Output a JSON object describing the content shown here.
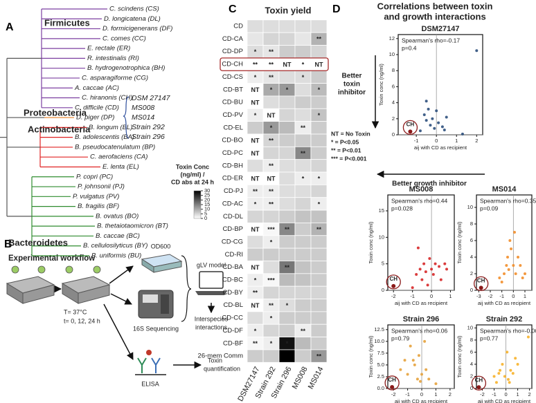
{
  "panel_a": {
    "letter": "A",
    "groups": [
      {
        "name": "Firmicutes",
        "color": "#7b3fa0",
        "species": [
          {
            "label": "C. scindens (CS)",
            "color": "#8e44ad"
          },
          {
            "label": "D. longicatena (DL)",
            "color": "#8b5a2b"
          },
          {
            "label": "D. formicigenerans (DF)",
            "color": "#d4a03a"
          },
          {
            "label": "C. comes (CC)",
            "color": "#9a9a9a"
          },
          {
            "label": "E. rectale (ER)",
            "color": "#b05fc9"
          },
          {
            "label": "R. intestinalis (RI)",
            "color": "#2c3e90"
          },
          {
            "label": "B. hydrogenotrophica (BH)",
            "color": "#5b2c6f"
          },
          {
            "label": "C. asparagiforme (CG)",
            "color": "#9b3fc0"
          },
          {
            "label": "A. caccae (AC)",
            "color": "#8878c3"
          },
          {
            "label": "C. hiranonis (CH)",
            "color": "#a0409a"
          },
          {
            "label": "C. difficile (CD)",
            "color": "#2b4c9b"
          }
        ]
      },
      {
        "name": "Proteobacteria",
        "color": "#e67e22",
        "species": [
          {
            "label": "D. piger (DP)",
            "color": "#e67e22"
          }
        ]
      },
      {
        "name": "Actinobacteria",
        "color": "#e02020",
        "species": [
          {
            "label": "B. longum (BL)",
            "color": "#c0392b"
          },
          {
            "label": "B. adolescentis (BA)",
            "color": "#c2185b"
          },
          {
            "label": "B. pseudocatenulatum (BP)",
            "color": "#e07ab0"
          },
          {
            "label": "C. aerofaciens (CA)",
            "color": "#f08a8a"
          },
          {
            "label": "E. lenta (EL)",
            "color": "#e8c13a"
          }
        ]
      },
      {
        "name": "Bacteroidetes",
        "color": "#2e8b2e",
        "species": [
          {
            "label": "P. copri (PC)",
            "color": "#8bc34a"
          },
          {
            "label": "P. johnsonii (PJ)",
            "color": "#1e6b1e"
          },
          {
            "label": "P. vulgatus (PV)",
            "color": "#2f8f6f"
          },
          {
            "label": "B. fragilis (BF)",
            "color": "#9acd32"
          },
          {
            "label": "B. ovatus (BO)",
            "color": "#556b2f"
          },
          {
            "label": "B. thetaiotaomicron (BT)",
            "color": "#2e6b2e"
          },
          {
            "label": "B. caccae (BC)",
            "color": "#3cb371"
          },
          {
            "label": "B. cellulosilyticus (BY)",
            "color": "#6b8e23"
          },
          {
            "label": "B. uniformis (BU)",
            "color": "#0b6e6e"
          }
        ]
      }
    ],
    "strains": [
      {
        "label": "DSM 27147",
        "color": "#2b4c9b"
      },
      {
        "label": "MS008",
        "color": "#5dade2"
      },
      {
        "label": "MS014",
        "color": "#2b4c9b"
      },
      {
        "label": "Strain 292",
        "color": "#3b7dd8"
      },
      {
        "label": "Strain 296",
        "color": "#85c1e9"
      }
    ]
  },
  "panel_b": {
    "letter": "B",
    "title": "Experimental workflow",
    "conditions": [
      "T= 37°C",
      "t= 0, 12, 24 h"
    ],
    "od": "OD600",
    "seq": "16S Sequencing",
    "elisa": "ELISA",
    "model": "gLV model",
    "interactions": [
      "Interspecies",
      "interactions"
    ],
    "quant": [
      "Toxin",
      "quantification"
    ]
  },
  "panel_c": {
    "letter": "C",
    "title": "Toxin yield",
    "rows": [
      "CD",
      "CD-CA",
      "CD-DP",
      "CD-CH",
      "CD-CS",
      "CD-BT",
      "CD-BU",
      "CD-PV",
      "CD-EL",
      "CD-BO",
      "CD-PC",
      "CD-BH",
      "CD-ER",
      "CD-PJ",
      "CD-AC",
      "CD-DL",
      "CD-BP",
      "CD-CG",
      "CD-RI",
      "CD-BA",
      "CD-BC",
      "CD-BY",
      "CD-BL",
      "CD-CC",
      "CD-DF",
      "CD-BF",
      "26-mem Comm"
    ],
    "columns": [
      "DSM27147",
      "Strain 292",
      "Strain 296",
      "MS008",
      "MS014"
    ],
    "values": [
      [
        4,
        4,
        4,
        4,
        4
      ],
      [
        3,
        5,
        5,
        3,
        9
      ],
      [
        4,
        3,
        6,
        6,
        5
      ],
      [
        0,
        0,
        0,
        0,
        0
      ],
      [
        2,
        3,
        4,
        4,
        6
      ],
      [
        0,
        10,
        12,
        4,
        8
      ],
      [
        0,
        4,
        5,
        6,
        6
      ],
      [
        2,
        0,
        5,
        4,
        7
      ],
      [
        6,
        12,
        8,
        2,
        6
      ],
      [
        0,
        5,
        6,
        6,
        6
      ],
      [
        0,
        5,
        5,
        14,
        6
      ],
      [
        4,
        2,
        4,
        4,
        5
      ],
      [
        0,
        0,
        4,
        2,
        2
      ],
      [
        2,
        2,
        4,
        4,
        5
      ],
      [
        2,
        2,
        4,
        5,
        2
      ],
      [
        5,
        5,
        6,
        7,
        7
      ],
      [
        0,
        1,
        14,
        6,
        9
      ],
      [
        4,
        2,
        6,
        6,
        6
      ],
      [
        6,
        6,
        6,
        6,
        6
      ],
      [
        0,
        4,
        16,
        7,
        6
      ],
      [
        2,
        1,
        8,
        7,
        6
      ],
      [
        2,
        5,
        5,
        5,
        5
      ],
      [
        0,
        2,
        4,
        6,
        6
      ],
      [
        4,
        2,
        6,
        6,
        6
      ],
      [
        2,
        5,
        6,
        2,
        6
      ],
      [
        1,
        2,
        28,
        8,
        6
      ],
      [
        6,
        6,
        30,
        6,
        12
      ]
    ],
    "labels": [
      [
        null,
        null,
        null,
        null,
        null
      ],
      [
        null,
        null,
        null,
        null,
        "**"
      ],
      [
        "*",
        "**",
        null,
        null,
        null
      ],
      [
        "**",
        "**",
        "NT",
        "*",
        "NT"
      ],
      [
        "*",
        "**",
        null,
        "*",
        null
      ],
      [
        "NT",
        "*",
        "*",
        null,
        "*"
      ],
      [
        "NT",
        null,
        null,
        null,
        null
      ],
      [
        "*",
        "NT",
        null,
        null,
        "*"
      ],
      [
        null,
        "*",
        null,
        "**",
        null
      ],
      [
        "NT",
        "**",
        null,
        null,
        null
      ],
      [
        "NT",
        null,
        null,
        "**",
        null
      ],
      [
        null,
        "**",
        null,
        null,
        null
      ],
      [
        "NT",
        "NT",
        null,
        "*",
        "*"
      ],
      [
        "**",
        "**",
        null,
        null,
        null
      ],
      [
        "*",
        "**",
        null,
        null,
        "*"
      ],
      [
        null,
        null,
        null,
        null,
        null
      ],
      [
        "NT",
        "***",
        "**",
        null,
        "**"
      ],
      [
        null,
        "*",
        null,
        null,
        null
      ],
      [
        null,
        null,
        null,
        null,
        null
      ],
      [
        "NT",
        null,
        "**",
        null,
        null
      ],
      [
        "*",
        "***",
        null,
        null,
        null
      ],
      [
        "**",
        null,
        null,
        null,
        null
      ],
      [
        "NT",
        "**",
        "*",
        null,
        null
      ],
      [
        null,
        "*",
        null,
        null,
        null
      ],
      [
        "*",
        null,
        null,
        "**",
        null
      ],
      [
        "**",
        "*",
        "*",
        null,
        null
      ],
      [
        null,
        null,
        null,
        null,
        "**"
      ]
    ],
    "colorbar": {
      "title": [
        "Toxin Conc",
        "(ng/ml) /",
        "CD abs at 24 h"
      ],
      "lim": [
        0,
        30
      ],
      "ticks": [
        0,
        5,
        10,
        15,
        20,
        25,
        30
      ]
    }
  },
  "panel_d": {
    "letter": "D",
    "title": [
      "Correlations between toxin",
      "and growth interactions"
    ],
    "y_label": "Toxin conc (ng/ml)",
    "x_label": "aij with CD as recipient",
    "toxin_arrow": [
      "Better",
      "toxin",
      "inhibitor"
    ],
    "growth_arrow": "Better growth inhibitor",
    "legend": [
      "NT = No Toxin",
      "* = P<0.05",
      "** = P<0.01",
      "*** = P<0.001"
    ],
    "plots": [
      {
        "type": "scatter",
        "title": "DSM27147",
        "color": "#2c4f7c",
        "x": [
          -0.6,
          -0.5,
          -0.4,
          -0.3,
          -0.2,
          -0.1,
          0.0,
          0.1,
          0.3,
          0.5,
          -0.5,
          0.4,
          2.0,
          -0.8,
          1.3
        ],
        "y": [
          2.5,
          1.8,
          3.2,
          1.2,
          2.0,
          0.8,
          3.0,
          1.5,
          1.0,
          2.2,
          4.2,
          0.6,
          10.5,
          0.5,
          0.1
        ],
        "xlim": [
          -1.9,
          2.3
        ],
        "ylim": [
          0,
          12.5
        ],
        "xticks": [
          -1,
          0,
          1,
          2
        ],
        "yticks": [
          0,
          2,
          4,
          6,
          8,
          10,
          12
        ],
        "annotation": [
          "Spearman's rho=-0.17",
          "p=0.4"
        ],
        "ch": {
          "label": "CH",
          "x": -1.3,
          "y": 0.4,
          "color": "#8b1a1a"
        }
      },
      {
        "type": "scatter",
        "title": "MS008",
        "color": "#d62728",
        "x": [
          -0.8,
          -0.6,
          -0.5,
          -0.4,
          -0.3,
          -0.2,
          -0.1,
          0.0,
          0.1,
          0.2,
          0.4,
          0.5,
          0.7,
          0.8,
          -1.0,
          -0.7
        ],
        "y": [
          3,
          4,
          2,
          5,
          3.5,
          1,
          6,
          4,
          3,
          5,
          4.5,
          2,
          5,
          4,
          0.5,
          8
        ],
        "xlim": [
          -2.3,
          1.2
        ],
        "ylim": [
          0,
          18
        ],
        "xticks": [
          -2,
          -1,
          0,
          1
        ],
        "yticks": [
          0,
          5,
          10,
          15
        ],
        "annotation": [
          "Spearman's rho=0.44",
          "p=0.028"
        ],
        "ch": {
          "label": "CH",
          "x": -2.0,
          "y": 0.8,
          "color": "#8b1a1a"
        }
      },
      {
        "type": "scatter",
        "title": "MS014",
        "color": "#f28e2b",
        "x": [
          -1.2,
          -1.0,
          -0.8,
          -0.6,
          -0.5,
          -0.4,
          -0.2,
          0.0,
          0.1,
          0.2,
          0.4,
          0.6,
          0.8,
          1.0,
          -0.3
        ],
        "y": [
          1.5,
          1,
          2,
          3,
          4,
          2.5,
          5,
          3,
          7,
          2,
          4,
          3,
          1.5,
          2,
          6
        ],
        "xlim": [
          -3.2,
          1.6
        ],
        "ylim": [
          0,
          11.5
        ],
        "xticks": [
          -3,
          -2,
          -1,
          0,
          1
        ],
        "yticks": [
          0,
          2,
          4,
          6,
          8,
          10
        ],
        "annotation": [
          "Spearman's rho=0.35",
          "p=0.09"
        ],
        "ch": {
          "label": "CH",
          "x": -2.8,
          "y": 0.3,
          "color": "#8b1a1a"
        }
      },
      {
        "type": "scatter",
        "title": "Strain 296",
        "color": "#e6a23c",
        "x": [
          -1.5,
          -1.2,
          -1.0,
          -0.8,
          -0.5,
          -0.3,
          -0.2,
          0.0,
          0.2,
          0.3,
          0.5,
          1.0,
          -0.6,
          -0.1
        ],
        "y": [
          4,
          6,
          3,
          9,
          5,
          2,
          7,
          3,
          10,
          4,
          2,
          1,
          6,
          1.5
        ],
        "xlim": [
          -2.4,
          2.3
        ],
        "ylim": [
          0,
          13.5
        ],
        "xticks": [
          -2,
          -1,
          0,
          1,
          2
        ],
        "yticks": [
          {
            "value": 0,
            "label": "0.0"
          },
          {
            "value": 2.5,
            "label": "2.5"
          },
          {
            "value": 5,
            "label": "5.0"
          },
          {
            "value": 7.5,
            "label": "7.5"
          },
          {
            "value": 10,
            "label": "10.0"
          },
          {
            "value": 12.5,
            "label": "12.5"
          }
        ],
        "annotation": [
          "Spearman's rho=0.06",
          "p=0.79"
        ],
        "ch": {
          "label": "CH",
          "x": -2.1,
          "y": 0.3,
          "color": "#8b1a1a"
        }
      },
      {
        "type": "scatter",
        "title": "Strain 292",
        "color": "#f7b32b",
        "x": [
          -1.0,
          -0.8,
          -0.5,
          -0.3,
          -0.1,
          0.1,
          0.2,
          0.4,
          0.6,
          0.8,
          1.0,
          1.9,
          -0.6,
          0.3
        ],
        "y": [
          2,
          1,
          3,
          4,
          2,
          6,
          1.5,
          3,
          2.5,
          5,
          4,
          8.5,
          2.5,
          1
        ],
        "xlim": [
          -2.5,
          2.2
        ],
        "ylim": [
          0,
          10.5
        ],
        "xticks": [
          -2,
          -1,
          0,
          1,
          2
        ],
        "yticks": [
          0,
          2,
          4,
          6,
          8,
          10
        ],
        "annotation": [
          "Spearman's rho=-0.06",
          "p=0.77"
        ],
        "ch": {
          "label": "CH",
          "x": -2.3,
          "y": 0.2,
          "color": "#8b1a1a"
        }
      }
    ]
  }
}
